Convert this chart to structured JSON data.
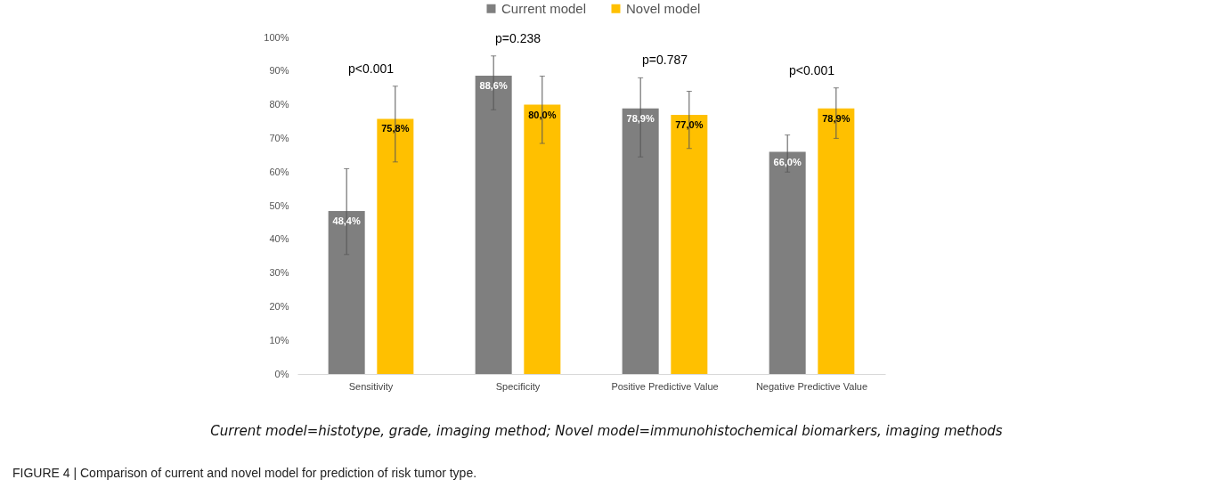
{
  "chart_data": {
    "type": "bar",
    "categories": [
      "Sensitivity",
      "Specificity",
      "Positive Predictive Value",
      "Negative Predictive Value"
    ],
    "series": [
      {
        "name": "Current model",
        "color": "#7f7f7f",
        "values": [
          48.4,
          88.6,
          78.9,
          66.0
        ],
        "value_labels": [
          "48,4%",
          "88,6%",
          "78,9%",
          "66,0%"
        ],
        "errors": [
          [
            35.5,
            61
          ],
          [
            78.5,
            94.5
          ],
          [
            64.5,
            88
          ],
          [
            60,
            71
          ]
        ]
      },
      {
        "name": "Novel model",
        "color": "#ffc000",
        "values": [
          75.8,
          80.0,
          77.0,
          78.9
        ],
        "value_labels": [
          "75,8%",
          "80,0%",
          "77,0%",
          "78,9%"
        ],
        "errors": [
          [
            63,
            85.5
          ],
          [
            68.5,
            88.5
          ],
          [
            67,
            84
          ],
          [
            70,
            85
          ]
        ]
      }
    ],
    "ylim": [
      0,
      100
    ],
    "yticks": [
      {
        "value": 0,
        "label": "0%"
      },
      {
        "value": 10,
        "label": "10%"
      },
      {
        "value": 20,
        "label": "20%"
      },
      {
        "value": 30,
        "label": "30%"
      },
      {
        "value": 40,
        "label": "40%"
      },
      {
        "value": 50,
        "label": "50%"
      },
      {
        "value": 60,
        "label": "60%"
      },
      {
        "value": 70,
        "label": "70%"
      },
      {
        "value": 80,
        "label": "80%"
      },
      {
        "value": 90,
        "label": "90%"
      },
      {
        "value": 100,
        "label": "100%"
      }
    ],
    "grid": false,
    "legend": "top",
    "annotations": [
      "p<0.001",
      "p=0.238",
      "p=0.787",
      "p<0.001",
      "Current model=histotype, grade, imaging method; Novel model=immunohistochemical biomarkers, imaging methods",
      "FIGURE 4 | Comparison of current and novel model for prediction of risk tumor type."
    ]
  }
}
